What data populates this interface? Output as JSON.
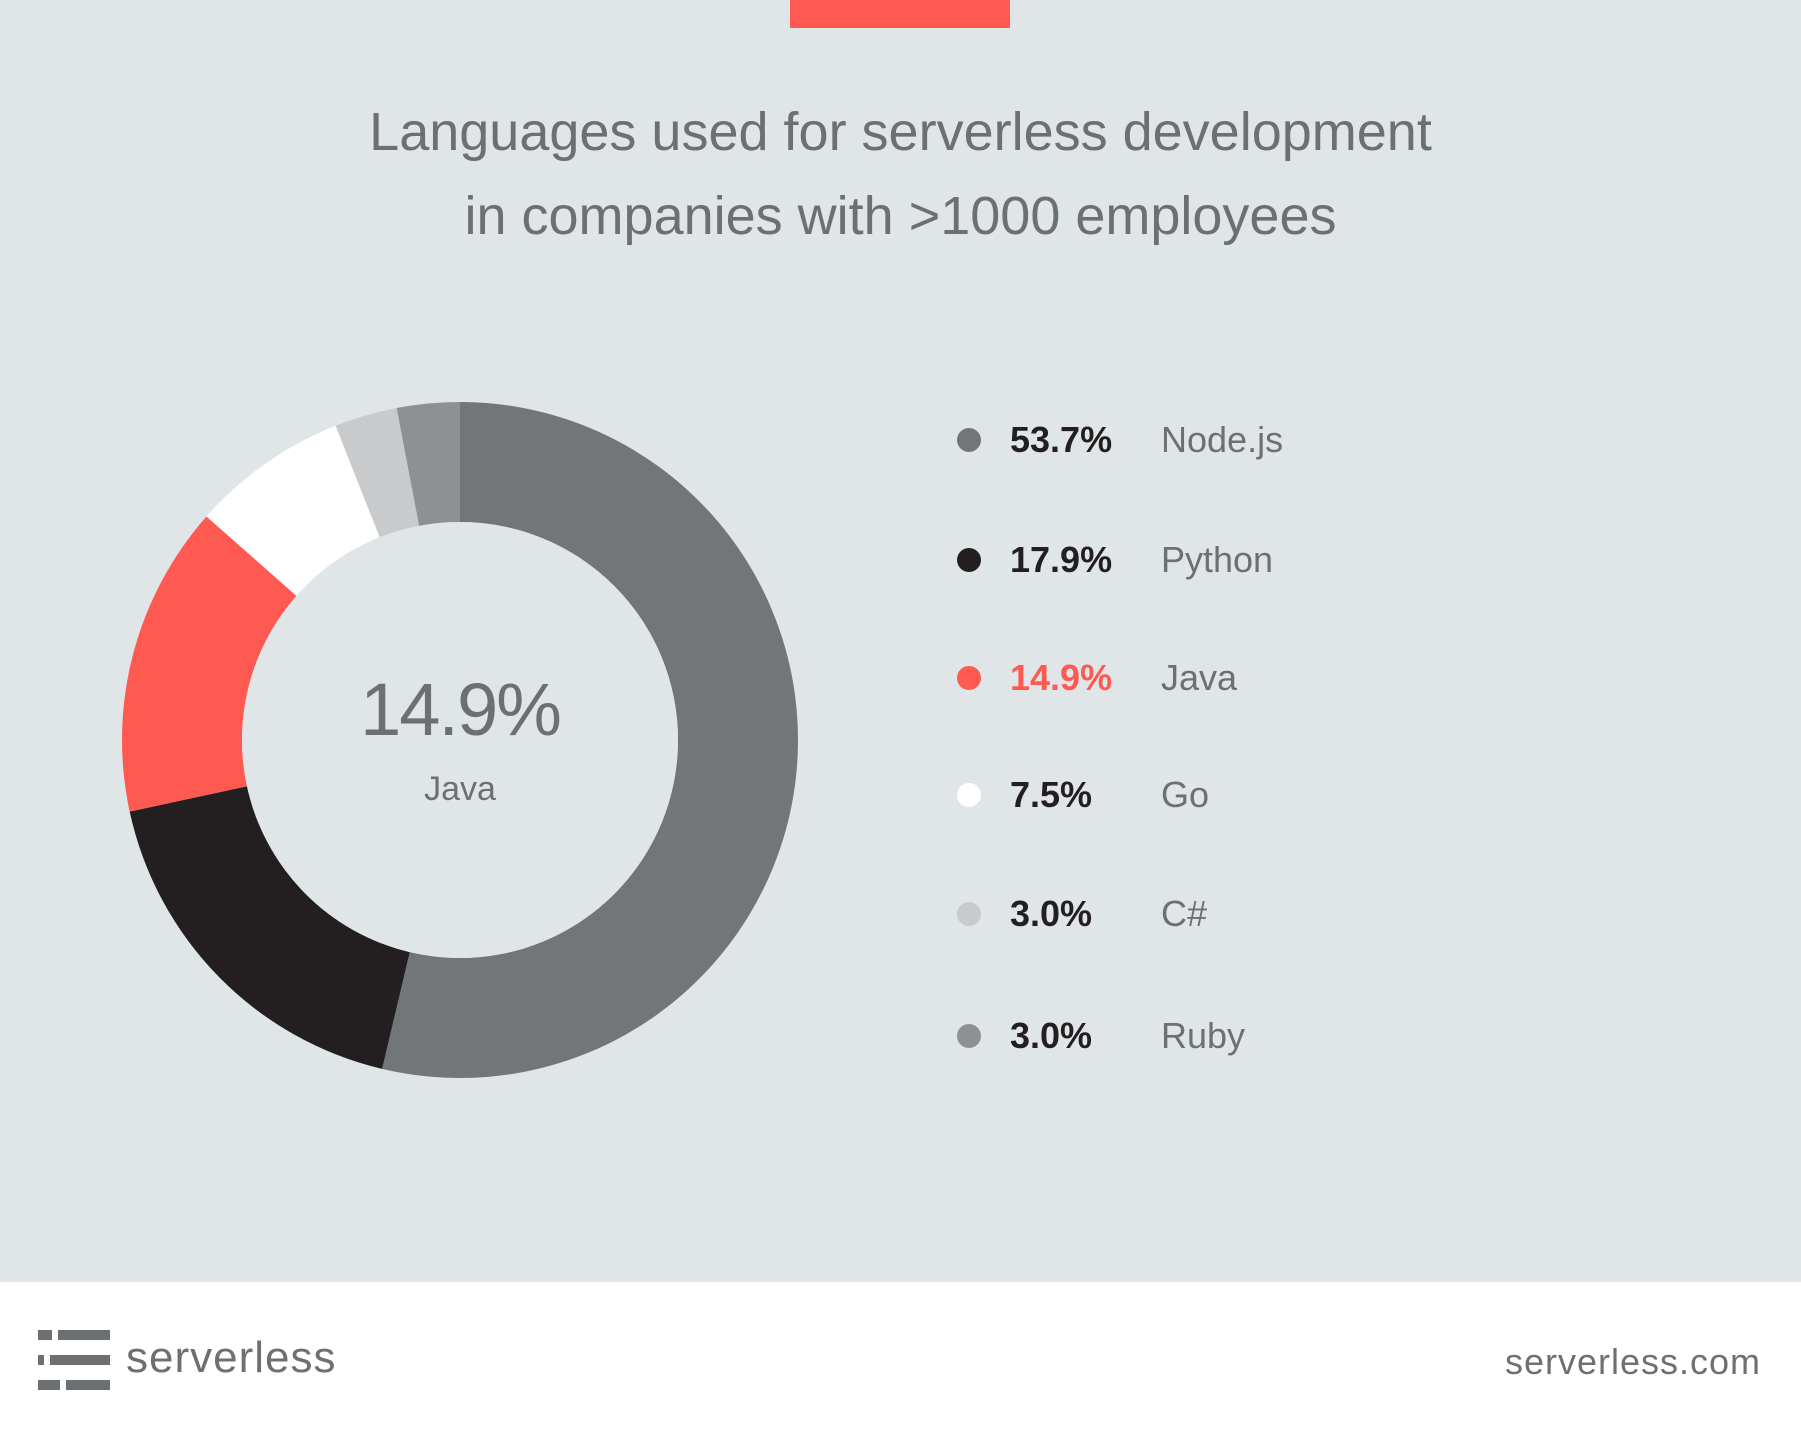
{
  "title_lines": [
    "Languages used for serverless development",
    "in companies with >1000 employees"
  ],
  "center": {
    "value": "14.9%",
    "label": "Java"
  },
  "colors": {
    "background": "#e0e5e7",
    "accent": "#ff5a52"
  },
  "chart_data": {
    "type": "pie",
    "variant": "donut",
    "title": "Languages used for serverless development in companies with >1000 employees",
    "unit": "%",
    "legend_position": "right",
    "start_angle_deg": 0,
    "direction": "clockwise",
    "categories": [
      "Node.js",
      "Python",
      "Java",
      "Go",
      "C#",
      "Ruby"
    ],
    "values": [
      53.7,
      17.9,
      14.9,
      7.5,
      3.0,
      3.0
    ],
    "labels": [
      "53.7%",
      "17.9%",
      "14.9%",
      "7.5%",
      "3.0%",
      "3.0%"
    ],
    "colors": [
      "#737679",
      "#231f20",
      "#ff5a52",
      "#ffffff",
      "#c8cacb",
      "#8e9092"
    ],
    "highlighted": "Java"
  },
  "footer": {
    "brand": "serverless",
    "logo_icon": "serverless-logo-icon",
    "url": "serverless.com"
  }
}
